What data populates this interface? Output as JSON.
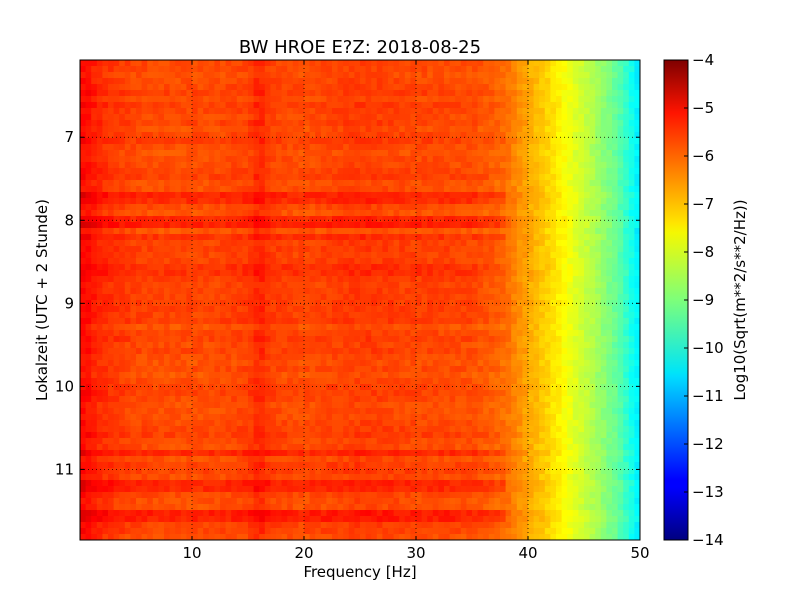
{
  "chart_data": {
    "type": "heatmap",
    "title": "BW HROE E?Z: 2018-08-25",
    "xlabel": "Frequency [Hz]",
    "ylabel": "Lokalzeit (UTC + 2 Stunde)",
    "xlim": [
      0,
      50
    ],
    "ylim": [
      11.85,
      6.07
    ],
    "x_ticks": [
      10,
      20,
      30,
      40,
      50
    ],
    "x_tick_labels": [
      "10",
      "20",
      "30",
      "40",
      "50"
    ],
    "y_ticks": [
      7,
      8,
      9,
      10,
      11
    ],
    "y_tick_labels": [
      "7",
      "8",
      "9",
      "10",
      "11"
    ],
    "grid": true,
    "colormap": "jet",
    "colorbar": {
      "label": "Log10(Sqrt(m**2/s**2/Hz))",
      "range": [
        -14,
        -4
      ],
      "ticks": [
        -4,
        -5,
        -6,
        -7,
        -8,
        -9,
        -10,
        -11,
        -12,
        -13,
        -14
      ],
      "tick_labels": [
        "−4",
        "−5",
        "−6",
        "−7",
        "−8",
        "−9",
        "−10",
        "−11",
        "−12",
        "−13",
        "−14"
      ]
    },
    "spectrum_profile": {
      "frequency_hz": [
        0,
        0.5,
        1,
        2,
        3,
        5,
        8,
        12,
        15,
        16,
        17,
        20,
        25,
        30,
        35,
        38,
        40,
        42,
        44,
        46,
        48,
        49.5,
        50
      ],
      "log10_amplitude": [
        -5.4,
        -5.3,
        -5.5,
        -5.7,
        -5.8,
        -5.95,
        -6.0,
        -6.0,
        -5.9,
        -5.6,
        -5.9,
        -6.0,
        -5.85,
        -5.95,
        -6.0,
        -6.3,
        -6.9,
        -7.4,
        -8.0,
        -8.6,
        -9.3,
        -10.2,
        -10.5
      ]
    },
    "noisy_hours": [
      7.75,
      8.0,
      8.2,
      8.6,
      10.8,
      11.2,
      11.55
    ]
  }
}
